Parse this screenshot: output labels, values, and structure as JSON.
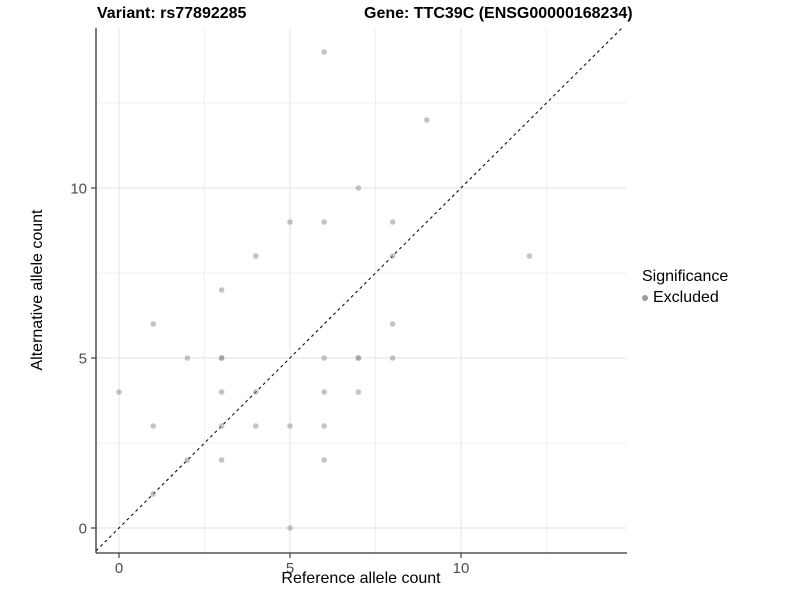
{
  "titles": {
    "left": "Variant: rs77892285",
    "right": "Gene: TTC39C (ENSG00000168234)"
  },
  "legend": {
    "title": "Significance",
    "items": [
      {
        "label": "Excluded",
        "color": "#9b9b9b"
      }
    ]
  },
  "chart_data": {
    "type": "scatter",
    "title_left": "Variant: rs77892285",
    "title_right": "Gene: TTC39C (ENSG00000168234)",
    "xlabel": "Reference allele count",
    "ylabel": "Alternative allele count",
    "xticks": [
      0,
      5,
      10
    ],
    "yticks": [
      0,
      5,
      10
    ],
    "x_minor_gridlines": [
      2.5,
      7.5,
      12.5
    ],
    "y_minor_gridlines": [
      2.5,
      7.5,
      12.5
    ],
    "xlim": [
      -0.67,
      14.85
    ],
    "ylim": [
      -0.74,
      14.7
    ],
    "grid": "major+minor",
    "legend_position": "right-middle",
    "identity_line": {
      "equation": "y = x",
      "style": "dashed",
      "color": "#111111"
    },
    "point_style": {
      "color": "#898989",
      "opacity": 0.5,
      "radius_px": 2.8
    },
    "colors": {
      "grid_major": "#e3e3e3",
      "grid_minor": "#f0f0f0",
      "axis_line": "#333333",
      "tick_label": "#4d4d4d"
    },
    "series": [
      {
        "name": "Excluded",
        "points": [
          [
            0,
            4
          ],
          [
            1,
            1
          ],
          [
            1,
            3
          ],
          [
            1,
            6
          ],
          [
            2,
            2
          ],
          [
            2,
            5
          ],
          [
            3,
            2
          ],
          [
            3,
            3
          ],
          [
            3,
            4
          ],
          [
            3,
            5
          ],
          [
            3,
            5
          ],
          [
            3,
            7
          ],
          [
            4,
            3
          ],
          [
            4,
            4
          ],
          [
            4,
            8
          ],
          [
            5,
            0
          ],
          [
            5,
            3
          ],
          [
            5,
            9
          ],
          [
            6,
            2
          ],
          [
            6,
            3
          ],
          [
            6,
            4
          ],
          [
            6,
            5
          ],
          [
            6,
            9
          ],
          [
            6,
            14
          ],
          [
            7,
            4
          ],
          [
            7,
            5
          ],
          [
            7,
            5
          ],
          [
            7,
            10
          ],
          [
            8,
            5
          ],
          [
            8,
            6
          ],
          [
            8,
            8
          ],
          [
            8,
            9
          ],
          [
            9,
            12
          ],
          [
            12,
            8
          ]
        ]
      }
    ]
  }
}
